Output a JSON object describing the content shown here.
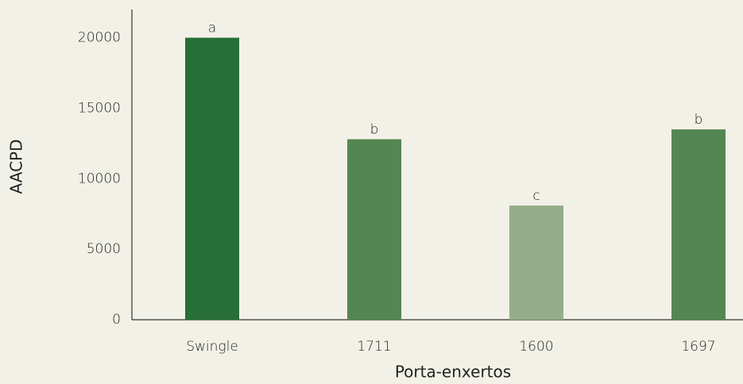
{
  "chart_data": {
    "type": "bar",
    "x_label": "Porta-enxertos",
    "y_label": "AACPD",
    "categories": [
      "Swingle",
      "1711",
      "1600",
      "1697"
    ],
    "values": [
      20000,
      12800,
      8100,
      13500
    ],
    "letters": [
      "a",
      "b",
      "c",
      "b"
    ],
    "colors": [
      "#276e38",
      "#548653",
      "#94ad8a",
      "#548653"
    ],
    "ylim": [
      0,
      22000
    ],
    "yticks": [
      0,
      5000,
      10000,
      15000,
      20000
    ],
    "grid": false
  }
}
